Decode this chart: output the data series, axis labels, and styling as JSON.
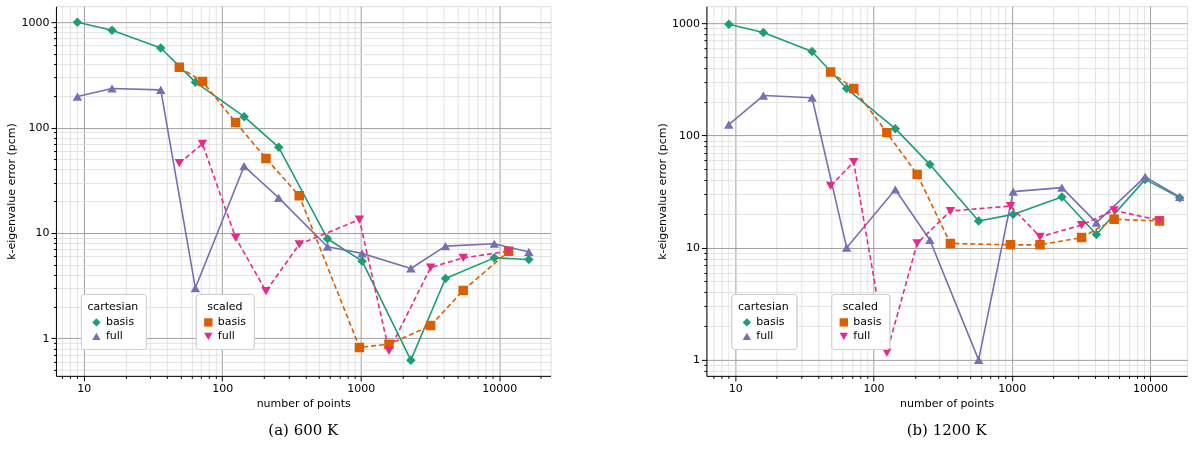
{
  "chart_data": [
    {
      "type": "line",
      "title": "(a) 600 K",
      "xlabel": "number of points",
      "ylabel": "k-eigenvalue error (pcm)",
      "log": "xy",
      "grid": true,
      "legend": "bottom left",
      "legend_title": [
        "cartesian",
        "scaled"
      ],
      "xlim": [
        6.3,
        23500
      ],
      "ylim": [
        0.44,
        1420
      ],
      "xticks": [
        {
          "value": 7,
          "label": null
        },
        {
          "value": 8,
          "label": null
        },
        {
          "value": 9,
          "label": null
        },
        10,
        {
          "value": 20,
          "label": null
        },
        {
          "value": 30,
          "label": null
        },
        {
          "value": 40,
          "label": null
        },
        {
          "value": 50,
          "label": null
        },
        {
          "value": 60,
          "label": null
        },
        {
          "value": 70,
          "label": null
        },
        {
          "value": 80,
          "label": null
        },
        {
          "value": 90,
          "label": null
        },
        100,
        {
          "value": 200,
          "label": null
        },
        {
          "value": 300,
          "label": null
        },
        {
          "value": 400,
          "label": null
        },
        {
          "value": 500,
          "label": null
        },
        {
          "value": 600,
          "label": null
        },
        {
          "value": 700,
          "label": null
        },
        {
          "value": 800,
          "label": null
        },
        {
          "value": 900,
          "label": null
        },
        1000,
        {
          "value": 2000,
          "label": null
        },
        {
          "value": 3000,
          "label": null
        },
        {
          "value": 4000,
          "label": null
        },
        {
          "value": 5000,
          "label": null
        },
        {
          "value": 6000,
          "label": null
        },
        {
          "value": 7000,
          "label": null
        },
        {
          "value": 8000,
          "label": null
        },
        {
          "value": 9000,
          "label": null
        },
        10000,
        {
          "value": 20000,
          "label": null
        }
      ],
      "yticks": [
        {
          "value": 0.5,
          "label": null
        },
        {
          "value": 0.6,
          "label": null
        },
        {
          "value": 0.7,
          "label": null
        },
        {
          "value": 0.8,
          "label": null
        },
        {
          "value": 0.9,
          "label": null
        },
        1,
        {
          "value": 2,
          "label": null
        },
        {
          "value": 3,
          "label": null
        },
        {
          "value": 4,
          "label": null
        },
        {
          "value": 5,
          "label": null
        },
        {
          "value": 6,
          "label": null
        },
        {
          "value": 7,
          "label": null
        },
        {
          "value": 8,
          "label": null
        },
        {
          "value": 9,
          "label": null
        },
        10,
        {
          "value": 20,
          "label": null
        },
        {
          "value": 30,
          "label": null
        },
        {
          "value": 40,
          "label": null
        },
        {
          "value": 50,
          "label": null
        },
        {
          "value": 60,
          "label": null
        },
        {
          "value": 70,
          "label": null
        },
        {
          "value": 80,
          "label": null
        },
        {
          "value": 90,
          "label": null
        },
        100,
        {
          "value": 200,
          "label": null
        },
        {
          "value": 300,
          "label": null
        },
        {
          "value": 400,
          "label": null
        },
        {
          "value": 500,
          "label": null
        },
        {
          "value": 600,
          "label": null
        },
        {
          "value": 700,
          "label": null
        },
        {
          "value": 800,
          "label": null
        },
        {
          "value": 900,
          "label": null
        },
        1000
      ],
      "series": [
        {
          "name": "basis",
          "color": "#1b9e77",
          "marker": "diamond",
          "line_style": "solid",
          "x": [
            9,
            16,
            36,
            64,
            144,
            256,
            576,
            1024,
            2304,
            4096,
            9216,
            16384
          ],
          "values": [
            1000,
            840,
            570,
            270,
            127,
            65,
            8.8,
            5.4,
            0.62,
            3.7,
            5.8,
            5.6
          ]
        },
        {
          "name": "full",
          "color": "#7570b3",
          "marker": "triangle",
          "line_style": "solid",
          "x": [
            9,
            16,
            36,
            64,
            144,
            256,
            576,
            1024,
            2304,
            4096,
            9216,
            16384
          ],
          "values": [
            197,
            235,
            228,
            3.0,
            43,
            21.5,
            7.4,
            6.4,
            4.6,
            7.5,
            7.9,
            6.6
          ]
        },
        {
          "name": "basis",
          "color": "#d95f02",
          "marker": "square",
          "line_style": "dashed",
          "x": [
            49,
            72,
            125,
            207,
            360,
            980,
            1600,
            3200,
            5500,
            11700
          ],
          "values": [
            373,
            274,
            112,
            51,
            22.5,
            0.82,
            0.88,
            1.32,
            2.85,
            6.7
          ]
        },
        {
          "name": "full",
          "color": "#e7298a",
          "marker": "triangle_down",
          "line_style": "dashed",
          "x": [
            49,
            72,
            125,
            207,
            360,
            980,
            1600,
            3200,
            5500,
            11700
          ],
          "values": [
            46,
            70,
            9.0,
            2.8,
            7.8,
            13.4,
            0.76,
            4.7,
            5.8,
            6.7
          ]
        }
      ]
    },
    {
      "type": "line",
      "title": "(b) 1200 K",
      "xlabel": "number of points",
      "ylabel": "k-eigenvalue error (pcm)",
      "log": "xy",
      "grid": true,
      "legend": "bottom left",
      "legend_title": [
        "cartesian",
        "scaled"
      ],
      "xlim": [
        6.2,
        18500
      ],
      "ylim": [
        0.72,
        1420
      ],
      "xticks": [
        {
          "value": 7,
          "label": null
        },
        {
          "value": 8,
          "label": null
        },
        {
          "value": 9,
          "label": null
        },
        10,
        {
          "value": 20,
          "label": null
        },
        {
          "value": 30,
          "label": null
        },
        {
          "value": 40,
          "label": null
        },
        {
          "value": 50,
          "label": null
        },
        {
          "value": 60,
          "label": null
        },
        {
          "value": 70,
          "label": null
        },
        {
          "value": 80,
          "label": null
        },
        {
          "value": 90,
          "label": null
        },
        100,
        {
          "value": 200,
          "label": null
        },
        {
          "value": 300,
          "label": null
        },
        {
          "value": 400,
          "label": null
        },
        {
          "value": 500,
          "label": null
        },
        {
          "value": 600,
          "label": null
        },
        {
          "value": 700,
          "label": null
        },
        {
          "value": 800,
          "label": null
        },
        {
          "value": 900,
          "label": null
        },
        1000,
        {
          "value": 2000,
          "label": null
        },
        {
          "value": 3000,
          "label": null
        },
        {
          "value": 4000,
          "label": null
        },
        {
          "value": 5000,
          "label": null
        },
        {
          "value": 6000,
          "label": null
        },
        {
          "value": 7000,
          "label": null
        },
        {
          "value": 8000,
          "label": null
        },
        {
          "value": 9000,
          "label": null
        },
        10000
      ],
      "yticks": [
        {
          "value": 0.8,
          "label": null
        },
        {
          "value": 0.9,
          "label": null
        },
        1,
        {
          "value": 2,
          "label": null
        },
        {
          "value": 3,
          "label": null
        },
        {
          "value": 4,
          "label": null
        },
        {
          "value": 5,
          "label": null
        },
        {
          "value": 6,
          "label": null
        },
        {
          "value": 7,
          "label": null
        },
        {
          "value": 8,
          "label": null
        },
        {
          "value": 9,
          "label": null
        },
        10,
        {
          "value": 20,
          "label": null
        },
        {
          "value": 30,
          "label": null
        },
        {
          "value": 40,
          "label": null
        },
        {
          "value": 50,
          "label": null
        },
        {
          "value": 60,
          "label": null
        },
        {
          "value": 70,
          "label": null
        },
        {
          "value": 80,
          "label": null
        },
        {
          "value": 90,
          "label": null
        },
        100,
        {
          "value": 200,
          "label": null
        },
        {
          "value": 300,
          "label": null
        },
        {
          "value": 400,
          "label": null
        },
        {
          "value": 500,
          "label": null
        },
        {
          "value": 600,
          "label": null
        },
        {
          "value": 700,
          "label": null
        },
        {
          "value": 800,
          "label": null
        },
        {
          "value": 900,
          "label": null
        },
        1000
      ],
      "series": [
        {
          "name": "basis",
          "color": "#1b9e77",
          "marker": "diamond",
          "line_style": "solid",
          "x": [
            9,
            16,
            36,
            64,
            144,
            256,
            576,
            1024,
            2304,
            4096,
            9216,
            16384
          ],
          "values": [
            980,
            826,
            560,
            262,
            115,
            55,
            17.3,
            19.8,
            28.3,
            13.1,
            40.6,
            27.9
          ]
        },
        {
          "name": "full",
          "color": "#7570b3",
          "marker": "triangle",
          "line_style": "solid",
          "x": [
            9,
            16,
            36,
            64,
            144,
            256,
            576,
            1024,
            2304,
            4096,
            9216,
            16384
          ],
          "values": [
            125,
            227,
            217,
            10,
            33,
            11.7,
            1.0,
            31.6,
            34.3,
            16.7,
            42.7,
            28.3
          ]
        },
        {
          "name": "basis",
          "color": "#d95f02",
          "marker": "square",
          "line_style": "dashed",
          "x": [
            49,
            72,
            125,
            207,
            360,
            980,
            1600,
            3200,
            5500,
            11700
          ],
          "values": [
            368,
            262,
            106,
            45,
            10.9,
            10.6,
            10.6,
            12.3,
            17.9,
            17.3
          ]
        },
        {
          "name": "full",
          "color": "#e7298a",
          "marker": "triangle_down",
          "line_style": "dashed",
          "x": [
            49,
            72,
            125,
            207,
            360,
            980,
            1600,
            3200,
            5500,
            11700
          ],
          "values": [
            35.5,
            58,
            1.16,
            10.9,
            21.2,
            23.5,
            12.5,
            15.9,
            21.5,
            17.5
          ]
        }
      ]
    }
  ]
}
